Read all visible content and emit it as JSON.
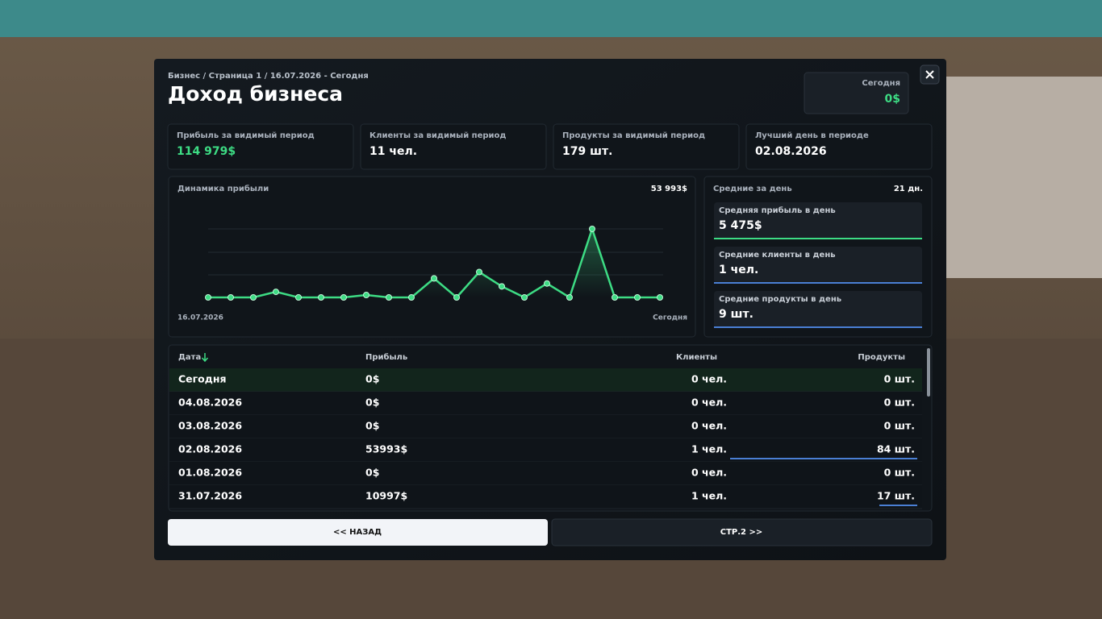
{
  "header": {
    "breadcrumb": "Бизнес / Страница 1 / 16.07.2026 - Сегодня",
    "title": "Доход бизнеса",
    "today_label": "Сегодня",
    "today_value": "0$"
  },
  "stats": [
    {
      "label": "Прибыль за видимый период",
      "value": "114 979$"
    },
    {
      "label": "Клиенты за видимый период",
      "value": "11 чел."
    },
    {
      "label": "Продукты за видимый период",
      "value": "179 шт."
    },
    {
      "label": "Лучший день в периоде",
      "value": "02.08.2026"
    }
  ],
  "chart_data": {
    "type": "line",
    "title": "Динамика прибыли",
    "max_label": "53 993$",
    "categories": [
      "16.07.2026",
      null,
      null,
      null,
      null,
      null,
      null,
      null,
      null,
      null,
      null,
      null,
      null,
      null,
      null,
      null,
      null,
      null,
      null,
      null,
      "Сегодня"
    ],
    "values": [
      0,
      0,
      0,
      4400,
      0,
      0,
      0,
      1900,
      0,
      0,
      15000,
      0,
      20000,
      8689,
      0,
      10997,
      0,
      53993,
      0,
      0,
      0
    ],
    "color": "#3ddc84",
    "ylim": [
      0,
      53993
    ]
  },
  "averages": {
    "title": "Средние за день",
    "days": "21 дн.",
    "items": [
      {
        "label": "Средняя прибыль в день",
        "value": "5 475$",
        "color": "#3ddc84"
      },
      {
        "label": "Средние клиенты в день",
        "value": "1 чел.",
        "color": "#4a7fd4"
      },
      {
        "label": "Средние продукты в день",
        "value": "9 шт.",
        "color": "#4a7fd4"
      }
    ]
  },
  "table": {
    "columns": [
      "Дата",
      "Прибыль",
      "Клиенты",
      "Продукты"
    ],
    "rows": [
      {
        "date": "Сегодня",
        "profit": "0$",
        "clients": "0 чел.",
        "products": "0 шт.",
        "products_count": 0
      },
      {
        "date": "04.08.2026",
        "profit": "0$",
        "clients": "0 чел.",
        "products": "0 шт.",
        "products_count": 0
      },
      {
        "date": "03.08.2026",
        "profit": "0$",
        "clients": "0 чел.",
        "products": "0 шт.",
        "products_count": 0
      },
      {
        "date": "02.08.2026",
        "profit": "53993$",
        "clients": "1 чел.",
        "products": "84 шт.",
        "products_count": 84
      },
      {
        "date": "01.08.2026",
        "profit": "0$",
        "clients": "0 чел.",
        "products": "0 шт.",
        "products_count": 0
      },
      {
        "date": "31.07.2026",
        "profit": "10997$",
        "clients": "1 чел.",
        "products": "17 шт.",
        "products_count": 17
      }
    ]
  },
  "buttons": [
    "<< НАЗАД",
    "СТР.2 >>"
  ]
}
